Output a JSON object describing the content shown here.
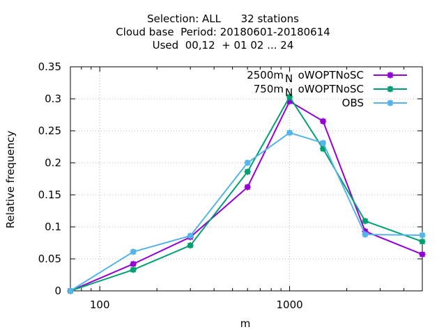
{
  "chart_data": {
    "type": "line",
    "title_lines": [
      "Selection: ALL      32 stations",
      "Cloud base  Period: 20180601-20180614",
      "Used  00,12  + 01 02 ... 24"
    ],
    "xlabel": "m",
    "ylabel": "Relative frequency",
    "x_scale": "log",
    "xlim": [
      70,
      5000
    ],
    "ylim": [
      0,
      0.35
    ],
    "x_ticks": [
      100,
      1000
    ],
    "x_tick_labels": [
      "100",
      "1000"
    ],
    "y_ticks": [
      0,
      0.05,
      0.1,
      0.15,
      0.2,
      0.25,
      0.3,
      0.35
    ],
    "y_tick_labels": [
      "0",
      "0.05",
      "0.1",
      "0.15",
      "0.2",
      "0.25",
      "0.3",
      "0.35"
    ],
    "grid": true,
    "legend_position": "top-right",
    "legend_sub_label": "N",
    "series": [
      {
        "name": "2500m  oWOPTNoSC",
        "color": "#9400d3",
        "x": [
          70,
          150,
          300,
          600,
          1000,
          1500,
          2500,
          5000
        ],
        "y": [
          0.0,
          0.042,
          0.084,
          0.162,
          0.296,
          0.265,
          0.093,
          0.057
        ]
      },
      {
        "name": "750m  oWOPTNoSC",
        "color": "#009e73",
        "x": [
          70,
          150,
          300,
          600,
          1000,
          1500,
          2500,
          5000
        ],
        "y": [
          0.0,
          0.033,
          0.071,
          0.186,
          0.303,
          0.222,
          0.109,
          0.077
        ]
      },
      {
        "name": "OBS",
        "color": "#56b4e9",
        "x": [
          70,
          150,
          300,
          600,
          1000,
          1500,
          2500,
          5000
        ],
        "y": [
          0.0,
          0.061,
          0.086,
          0.2,
          0.247,
          0.231,
          0.088,
          0.087
        ]
      }
    ]
  }
}
